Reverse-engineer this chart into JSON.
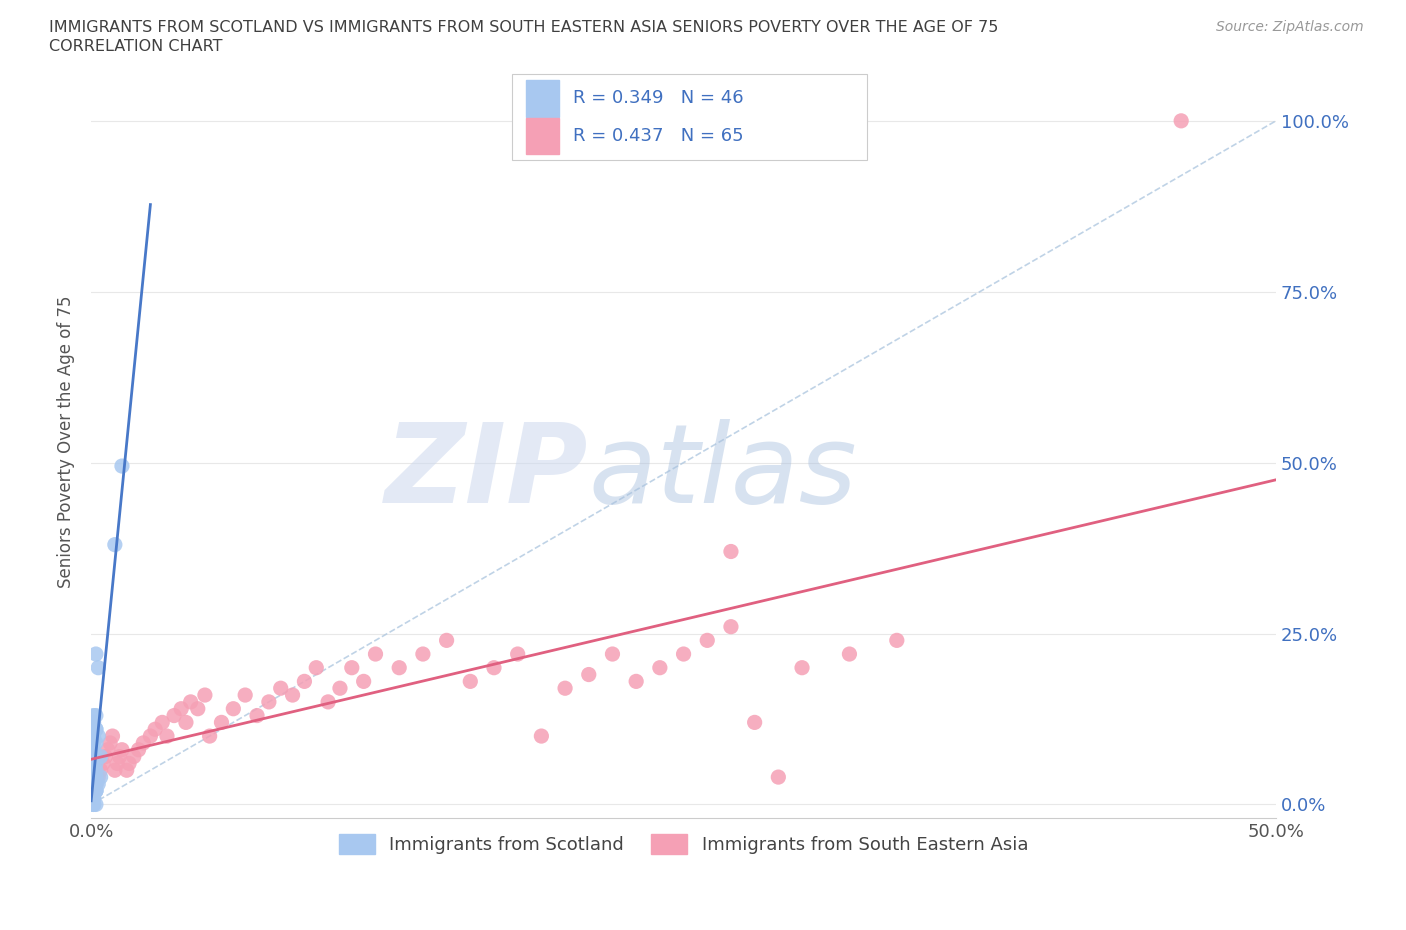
{
  "title_line1": "IMMIGRANTS FROM SCOTLAND VS IMMIGRANTS FROM SOUTH EASTERN ASIA SENIORS POVERTY OVER THE AGE OF 75",
  "title_line2": "CORRELATION CHART",
  "source_text": "Source: ZipAtlas.com",
  "ylabel": "Seniors Poverty Over the Age of 75",
  "ytick_labels": [
    "0.0%",
    "25.0%",
    "50.0%",
    "75.0%",
    "100.0%"
  ],
  "ytick_values": [
    0.0,
    0.25,
    0.5,
    0.75,
    1.0
  ],
  "xlim": [
    0.0,
    0.5
  ],
  "ylim": [
    -0.02,
    1.08
  ],
  "scotland_R": 0.349,
  "scotland_N": 46,
  "sea_R": 0.437,
  "sea_N": 65,
  "scotland_color": "#a8c8f0",
  "sea_color": "#f5a0b5",
  "scotland_line_color": "#4878c8",
  "sea_line_color": "#e06080",
  "diag_line_color": "#b0c8e0",
  "background_color": "#ffffff",
  "grid_color": "#e8e8e8",
  "legend_edge_color": "#cccccc",
  "legend_text_color": "#4070c0",
  "source_color": "#999999",
  "title_color": "#404040",
  "xtick_label_left": "0.0%",
  "xtick_label_right": "50.0%",
  "scotland_x": [
    0.002,
    0.003,
    0.004,
    0.001,
    0.002,
    0.001,
    0.001,
    0.001,
    0.002,
    0.001,
    0.001,
    0.002,
    0.003,
    0.002,
    0.001,
    0.001,
    0.001,
    0.002,
    0.001,
    0.002,
    0.001,
    0.001,
    0.002,
    0.001,
    0.001,
    0.001,
    0.002,
    0.001,
    0.002,
    0.001,
    0.001,
    0.001,
    0.002,
    0.001,
    0.002,
    0.001,
    0.003,
    0.002,
    0.001,
    0.001,
    0.001,
    0.002,
    0.004,
    0.002,
    0.013,
    0.01
  ],
  "scotland_y": [
    0.02,
    0.03,
    0.04,
    0.01,
    0.02,
    0.03,
    0.04,
    0.05,
    0.06,
    0.07,
    0.08,
    0.09,
    0.1,
    0.11,
    0.12,
    0.13,
    0.01,
    0.02,
    0.03,
    0.04,
    0.05,
    0.06,
    0.07,
    0.08,
    0.09,
    0.1,
    0.11,
    0.12,
    0.13,
    0.0,
    0.01,
    0.02,
    0.03,
    0.04,
    0.05,
    0.06,
    0.2,
    0.22,
    0.0,
    0.01,
    0.0,
    0.03,
    0.07,
    0.0,
    0.495,
    0.38
  ],
  "sea_x": [
    0.001,
    0.002,
    0.003,
    0.004,
    0.005,
    0.006,
    0.007,
    0.008,
    0.009,
    0.01,
    0.011,
    0.012,
    0.013,
    0.015,
    0.016,
    0.018,
    0.02,
    0.022,
    0.025,
    0.027,
    0.03,
    0.032,
    0.035,
    0.038,
    0.04,
    0.042,
    0.045,
    0.048,
    0.05,
    0.055,
    0.06,
    0.065,
    0.07,
    0.075,
    0.08,
    0.085,
    0.09,
    0.095,
    0.1,
    0.105,
    0.11,
    0.115,
    0.12,
    0.13,
    0.14,
    0.15,
    0.16,
    0.17,
    0.18,
    0.19,
    0.2,
    0.21,
    0.22,
    0.23,
    0.24,
    0.25,
    0.26,
    0.27,
    0.28,
    0.29,
    0.3,
    0.32,
    0.34,
    0.27,
    0.46
  ],
  "sea_y": [
    0.02,
    0.03,
    0.04,
    0.05,
    0.06,
    0.07,
    0.08,
    0.09,
    0.1,
    0.05,
    0.06,
    0.07,
    0.08,
    0.05,
    0.06,
    0.07,
    0.08,
    0.09,
    0.1,
    0.11,
    0.12,
    0.1,
    0.13,
    0.14,
    0.12,
    0.15,
    0.14,
    0.16,
    0.1,
    0.12,
    0.14,
    0.16,
    0.13,
    0.15,
    0.17,
    0.16,
    0.18,
    0.2,
    0.15,
    0.17,
    0.2,
    0.18,
    0.22,
    0.2,
    0.22,
    0.24,
    0.18,
    0.2,
    0.22,
    0.1,
    0.17,
    0.19,
    0.22,
    0.18,
    0.2,
    0.22,
    0.24,
    0.26,
    0.12,
    0.04,
    0.2,
    0.22,
    0.24,
    0.37,
    1.0
  ]
}
